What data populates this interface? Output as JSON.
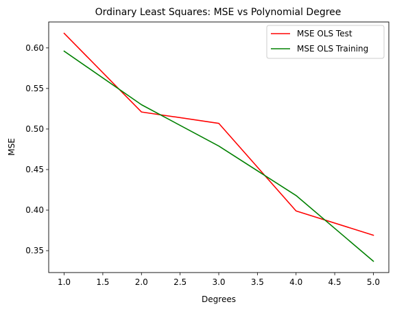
{
  "chart_data": {
    "type": "line",
    "title": "Ordinary Least Squares: MSE vs Polynomial Degree",
    "xlabel": "Degrees",
    "ylabel": "MSE",
    "xlim": [
      0.8,
      5.2
    ],
    "ylim": [
      0.323,
      0.632
    ],
    "xticks": [
      1.0,
      1.5,
      2.0,
      2.5,
      3.0,
      3.5,
      4.0,
      4.5,
      5.0
    ],
    "xtick_labels": [
      "1.0",
      "1.5",
      "2.0",
      "2.5",
      "3.0",
      "3.5",
      "4.0",
      "4.5",
      "5.0"
    ],
    "yticks": [
      0.35,
      0.4,
      0.45,
      0.5,
      0.55,
      0.6
    ],
    "ytick_labels": [
      "0.35",
      "0.40",
      "0.45",
      "0.50",
      "0.55",
      "0.60"
    ],
    "grid": false,
    "legend_position": "upper right",
    "x": [
      1,
      2,
      3,
      4,
      5
    ],
    "series": [
      {
        "name": "MSE OLS Test",
        "color": "#ff0000",
        "values": [
          0.618,
          0.521,
          0.507,
          0.399,
          0.369
        ]
      },
      {
        "name": "MSE OLS Training",
        "color": "#008000",
        "values": [
          0.596,
          0.53,
          0.479,
          0.418,
          0.337
        ]
      }
    ]
  }
}
